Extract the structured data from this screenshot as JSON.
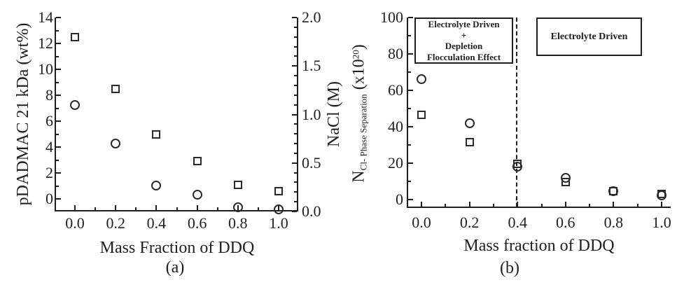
{
  "figure": {
    "background": "#ffffff",
    "ink": "#1f1f1f",
    "marker_stroke": "#2a2a2a"
  },
  "chart_data": [
    {
      "id": "a",
      "type": "scatter",
      "caption": "(a)",
      "xlabel": "Mass Fraction of DDQ",
      "ylabel_left": "pDADMAC 21 kDa (wt%)",
      "ylabel_right": "NaCl (M)",
      "xlim": [
        -0.09,
        1.09
      ],
      "ylim_left": [
        -0.9,
        14
      ],
      "ylim_right": [
        0.0,
        2.0
      ],
      "grid": false,
      "legend": "none",
      "x_tick_labels": [
        "0.0",
        "0.2",
        "0.4",
        "0.6",
        "0.8",
        "1.0"
      ],
      "x_tick_values": [
        0,
        0.2,
        0.4,
        0.6,
        0.8,
        1.0
      ],
      "x_minor_tick_values": [
        0.1,
        0.3,
        0.5,
        0.7,
        0.9
      ],
      "left_tick_labels": [
        "0",
        "2",
        "4",
        "6",
        "8",
        "10",
        "12",
        "14"
      ],
      "left_tick_values": [
        0,
        2,
        4,
        6,
        8,
        10,
        12,
        14
      ],
      "left_minor_tick_values": [
        1,
        3,
        5,
        7,
        9,
        11,
        13
      ],
      "right_tick_labels": [
        "0.0",
        "0.5",
        "1.0",
        "1.5",
        "2.0"
      ],
      "right_tick_values": [
        0,
        0.5,
        1.0,
        1.5,
        2.0
      ],
      "right_minor_tick_step": 0.1,
      "series": [
        {
          "name": "pDADMAC 21 kDa (wt%) - open squares, left axis",
          "marker": "square",
          "axis": "left",
          "x": [
            0.0,
            0.2,
            0.4,
            0.6,
            0.8,
            1.0
          ],
          "y": [
            12.5,
            8.5,
            5.0,
            2.9,
            1.1,
            0.6
          ]
        },
        {
          "name": "NaCl (M) - open circles, right axis",
          "marker": "circle",
          "axis": "right",
          "x": [
            0.0,
            0.2,
            0.4,
            0.6,
            0.8,
            1.0
          ],
          "y": [
            1.1,
            0.7,
            0.27,
            0.17,
            0.04,
            0.02
          ]
        }
      ]
    },
    {
      "id": "b",
      "type": "scatter",
      "caption": "(b)",
      "xlabel": "Mass fraction of DDQ",
      "ylabel_parts": {
        "base": "N",
        "subscript": "Cl- Phase Separation",
        "open": " (x10",
        "superscript": "20",
        "close": ")"
      },
      "xlim": [
        -0.06,
        1.04
      ],
      "ylim": [
        -4,
        100
      ],
      "grid": false,
      "legend": "none",
      "x_tick_labels": [
        "0.0",
        "0.2",
        "0.4",
        "0.6",
        "0.8",
        "1.0"
      ],
      "x_tick_values": [
        0,
        0.2,
        0.4,
        0.6,
        0.8,
        1.0
      ],
      "x_minor_tick_values": [
        0.1,
        0.3,
        0.5,
        0.7,
        0.9
      ],
      "y_tick_labels": [
        "0",
        "20",
        "40",
        "60",
        "80",
        "100"
      ],
      "y_tick_values": [
        0,
        20,
        40,
        60,
        80,
        100
      ],
      "y_minor_tick_values": [
        10,
        30,
        50,
        70,
        90
      ],
      "dashed_line_x": 0.4,
      "annotations": [
        {
          "region": "left of dashed line",
          "lines": [
            "Electrolyte Driven",
            "+",
            "Depletion",
            "Flocculation Effect"
          ]
        },
        {
          "region": "right of dashed line",
          "lines": [
            "Electrolyte Driven"
          ]
        }
      ],
      "series": [
        {
          "name": "open circles",
          "marker": "circle",
          "x": [
            0.0,
            0.2,
            0.4,
            0.6,
            0.8,
            1.0
          ],
          "y": [
            66,
            42,
            18,
            12,
            4.5,
            2.5
          ]
        },
        {
          "name": "open squares",
          "marker": "square",
          "x": [
            0.0,
            0.2,
            0.4,
            0.6,
            0.8,
            1.0
          ],
          "y": [
            46.5,
            31.5,
            19.5,
            9.5,
            4.5,
            3
          ]
        }
      ]
    }
  ]
}
